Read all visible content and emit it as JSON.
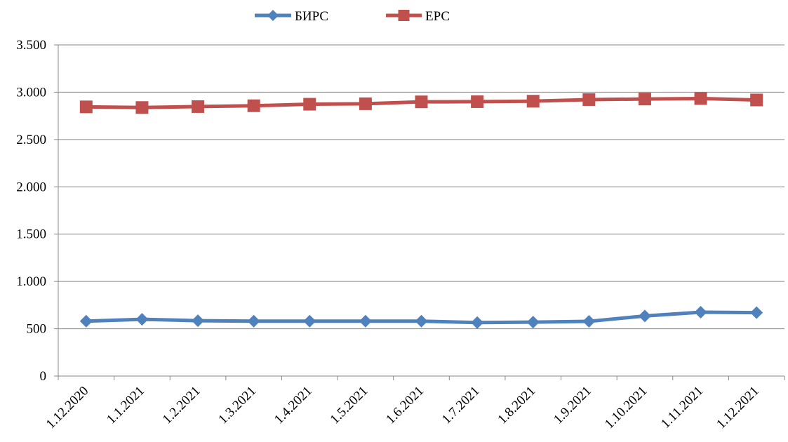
{
  "chart_data": {
    "type": "line",
    "title": "",
    "xlabel": "",
    "ylabel": "",
    "categories": [
      "1.12.2020",
      "1.1.2021",
      "1.2.2021",
      "1.3.2021",
      "1.4.2021",
      "1.5.2021",
      "1.6.2021",
      "1.7.2021",
      "1.8.2021",
      "1.9.2021",
      "1.10.2021",
      "1.11.2021",
      "1.12.2021"
    ],
    "ylim": [
      0,
      3500
    ],
    "yticks": [
      0,
      500,
      1000,
      1500,
      2000,
      2500,
      3000,
      3500
    ],
    "ytick_labels": [
      "0",
      "500",
      "1.000",
      "1.500",
      "2.000",
      "2.500",
      "3.000",
      "3.500"
    ],
    "grid": true,
    "legend_position": "top-center",
    "series": [
      {
        "name": "БИРС",
        "color": "#4F81BD",
        "marker": "diamond",
        "values": [
          580,
          600,
          585,
          580,
          580,
          580,
          580,
          565,
          570,
          578,
          635,
          675,
          670
        ]
      },
      {
        "name": "ЕРС",
        "color": "#C0504D",
        "marker": "square",
        "values": [
          2845,
          2838,
          2848,
          2857,
          2873,
          2878,
          2898,
          2900,
          2905,
          2922,
          2928,
          2933,
          2918
        ]
      }
    ]
  }
}
